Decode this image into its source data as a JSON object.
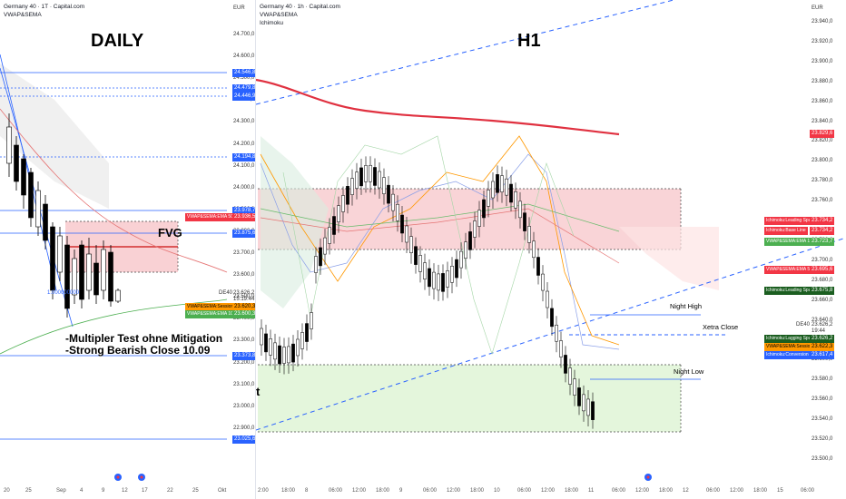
{
  "daily": {
    "header_title": "Germany 40 · 1T · Capital.com",
    "header_indicator": "VWAP&SEMA",
    "timeframe_label": "DAILY",
    "currency": "EUR",
    "fvg_label": "FVG",
    "fib_label": "1.000000000",
    "symbol": "DE40",
    "last_price": "23.626,2",
    "countdown": "15:19:44",
    "annotation_lines": [
      "-Multipler Test ohne Mitigation",
      "-Strong Bearish Close 10.09"
    ],
    "price_axis": [
      "24.700,0",
      "24.600,0",
      "24.500,0",
      "24.400,0",
      "24.300,0",
      "24.200,0",
      "24.100,0",
      "24.000,0",
      "23.900,0",
      "23.800,0",
      "23.700,0",
      "23.600,0",
      "23.500,0",
      "23.400,0",
      "23.300,0",
      "23.200,0",
      "23.100,0",
      "23.000,0",
      "22.900,0"
    ],
    "level_tags": [
      {
        "text": "24.546,8",
        "color": "blue"
      },
      {
        "text": "24.479,8",
        "color": "blue"
      },
      {
        "text": "24.446,9",
        "color": "blue"
      },
      {
        "text": "24.194,8",
        "color": "blue"
      },
      {
        "text": "23.978,7",
        "color": "blue"
      },
      {
        "text": "23.875,6",
        "color": "blue"
      },
      {
        "text": "23.373,8",
        "color": "blue"
      },
      {
        "text": "23.025,6",
        "color": "blue"
      }
    ],
    "indicator_tags": [
      {
        "name": "VWAP&SEMA:EMA 50",
        "value": "23.936,5",
        "color": "red"
      },
      {
        "name": "VWAP&SEMA:Session VWAP",
        "value": "23.620,3",
        "color": "orange"
      },
      {
        "name": "VWAP&SEMA:EMA 100",
        "value": "23.600,3",
        "color": "green"
      }
    ],
    "time_axis": [
      "20",
      "25",
      "Sep",
      "4",
      "9",
      "12",
      "17",
      "22",
      "25",
      "Okt"
    ]
  },
  "h1": {
    "header_title": "Germany 40 · 1h · Capital.com",
    "header_indicator1": "VWAP&SEMA",
    "header_indicator2": "Ichimoku",
    "timeframe_label": "H1",
    "currency": "EUR",
    "symbol": "DE40",
    "last_price": "23.626,2",
    "countdown": "19:44",
    "night_high": "Night High",
    "night_low": "Night Low",
    "xetra_close": "Xetra Close",
    "edge_char": "t",
    "price_axis": [
      "23.940,0",
      "23.920,0",
      "23.900,0",
      "23.880,0",
      "23.860,0",
      "23.840,0",
      "23.820,0",
      "23.800,0",
      "23.780,0",
      "23.760,0",
      "23.740,0",
      "23.720,0",
      "23.700,0",
      "23.680,0",
      "23.660,0",
      "23.640,0",
      "23.620,0",
      "23.600,0",
      "23.580,0",
      "23.560,0",
      "23.540,0",
      "23.520,0",
      "23.500,0"
    ],
    "red_level": "23.829,6",
    "indicator_tags": [
      {
        "name": "Ichimoku:Leading Span B",
        "value": "23.734,2",
        "color": "red"
      },
      {
        "name": "Ichimoku:Base Line",
        "value": "23.734,2",
        "color": "red"
      },
      {
        "name": "VWAP&SEMA:EMA 100",
        "value": "23.723,7",
        "color": "green"
      },
      {
        "name": "VWAP&SEMA:EMA 50",
        "value": "23.695,6",
        "color": "red"
      },
      {
        "name": "Ichimoku:Leading Span A",
        "value": "23.675,8",
        "color": "dgreen"
      },
      {
        "name": "Ichimoku:Lagging Span",
        "value": "23.626,2",
        "color": "dgreen"
      },
      {
        "name": "VWAP&SEMA:Session VWAP",
        "value": "23.622,3",
        "color": "orange"
      },
      {
        "name": "Ichimoku:Conversion Line",
        "value": "23.617,4",
        "color": "blue"
      }
    ],
    "time_axis": [
      "2:00",
      "18:00",
      "8",
      "06:00",
      "12:00",
      "18:00",
      "9",
      "06:00",
      "12:00",
      "18:00",
      "10",
      "06:00",
      "12:00",
      "18:00",
      "11",
      "06:00",
      "12:00",
      "18:00",
      "12",
      "06:00",
      "12:00",
      "18:00",
      "15",
      "06:00"
    ]
  },
  "colors": {
    "bull": "#ffffff",
    "bear": "#000000",
    "ema50": "#e03140",
    "vwap": "#ff9800",
    "ema100": "#4caf50",
    "trend": "#2962ff",
    "fvg_fill": "#f7c5c9",
    "demand_fill": "#dff5d6"
  }
}
